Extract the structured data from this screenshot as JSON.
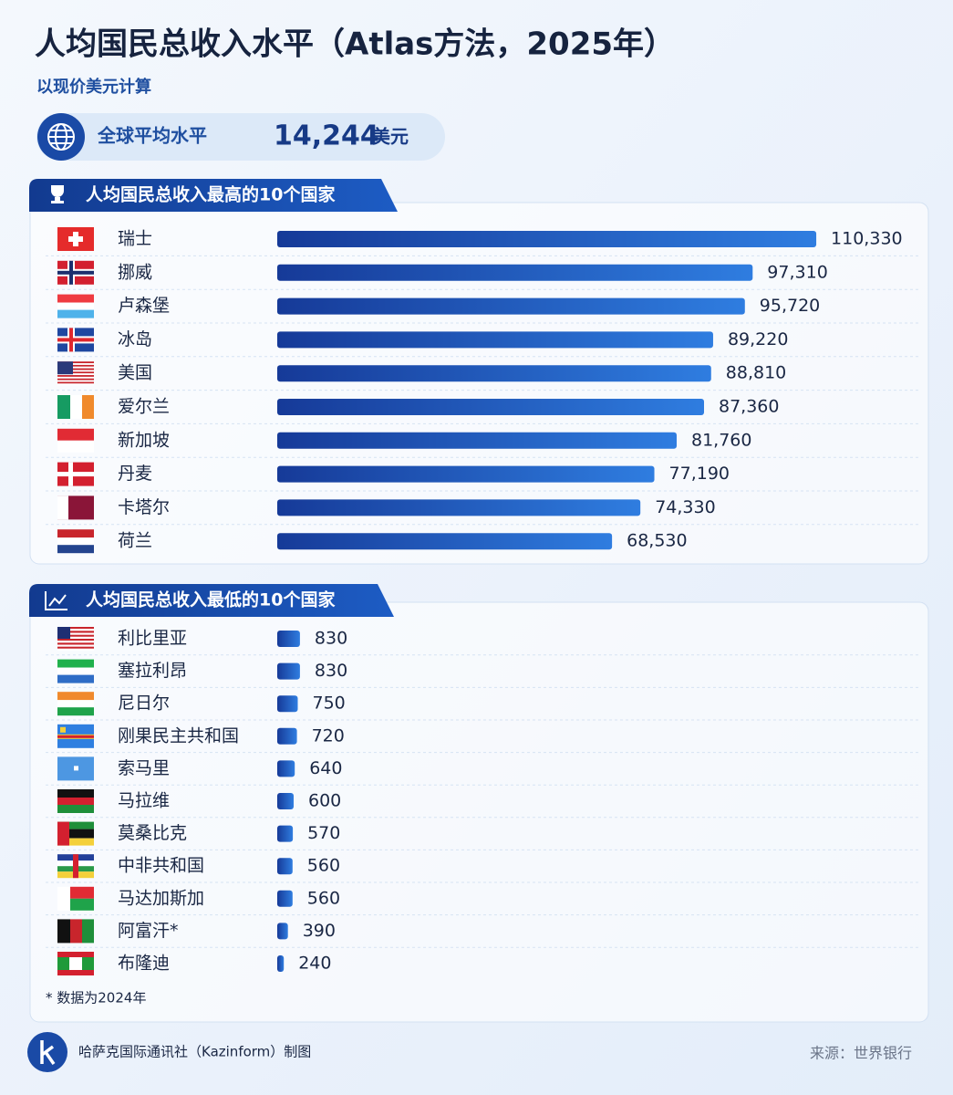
{
  "header": {
    "title": "人均国民总收入水平（Atlas方法，2025年）",
    "subtitle": "以现价美元计算"
  },
  "global_average": {
    "label": "全球平均水平",
    "value": "14,244",
    "unit": "美元"
  },
  "chart_data": [
    {
      "type": "bar",
      "title": "人均国民总收入最高的10个国家",
      "color": "#2f7de0",
      "categories": [
        "瑞士",
        "挪威",
        "卢森堡",
        "冰岛",
        "美国",
        "爱尔兰",
        "新加坡",
        "丹麦",
        "卡塔尔",
        "荷兰"
      ],
      "values": [
        110330,
        97310,
        95720,
        89220,
        88810,
        87360,
        81760,
        77190,
        74330,
        68530
      ],
      "value_labels": [
        "110,330",
        "97,310",
        "95,720",
        "89,220",
        "88,810",
        "87,360",
        "81,760",
        "77,190",
        "74,330",
        "68,530"
      ],
      "xlim": [
        0,
        112000
      ]
    },
    {
      "type": "bar",
      "title": "人均国民总收入最低的10个国家",
      "color": "#2f7de0",
      "categories": [
        "利比里亚",
        "塞拉利昂",
        "尼日尔",
        "刚果民主共和国",
        "索马里",
        "马拉维",
        "莫桑比克",
        "中非共和国",
        "马达加斯加",
        "阿富汗*",
        "布隆迪"
      ],
      "values": [
        830,
        830,
        750,
        720,
        640,
        600,
        570,
        560,
        560,
        390,
        240
      ],
      "xlim": [
        0,
        20000
      ],
      "note": "* 数据为2024年"
    }
  ],
  "footer": {
    "credit": "哈萨克国际通讯社（Kazinform）制图",
    "source": "来源：世界银行"
  }
}
